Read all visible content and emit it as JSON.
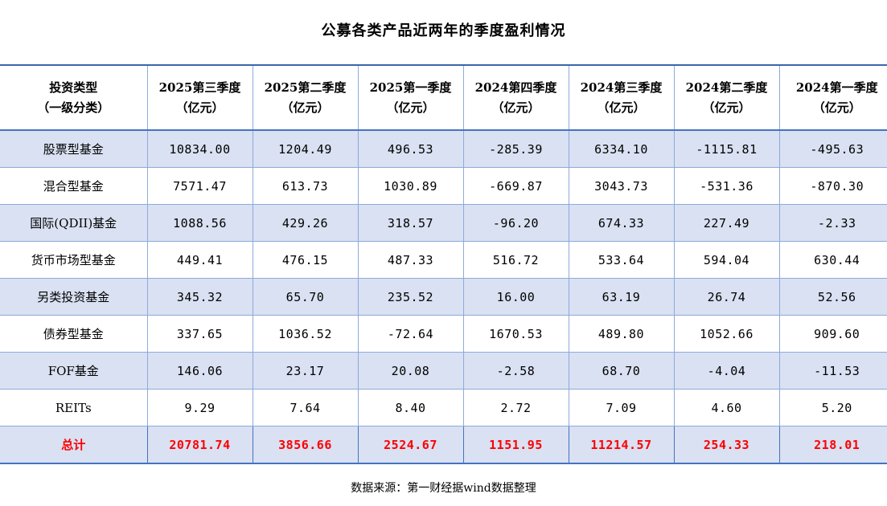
{
  "title": "公募各类产品近两年的季度盈利情况",
  "source": "数据来源：第一财经据wind数据整理",
  "colors": {
    "band_row_bg": "#D9E1F2",
    "grid_line": "#8EAADB",
    "heavy_line": "#4472C4",
    "top_line": "#3A66AC",
    "total_text": "#FF0000",
    "body_text": "#000000"
  },
  "table": {
    "header": {
      "category_line1": "投资类型",
      "category_line2": "（一级分类）",
      "quarters": [
        {
          "line1": "2025第三季度",
          "line2": "（亿元）"
        },
        {
          "line1": "2025第二季度",
          "line2": "（亿元）"
        },
        {
          "line1": "2025第一季度",
          "line2": "（亿元）"
        },
        {
          "line1": "2024第四季度",
          "line2": "（亿元）"
        },
        {
          "line1": "2024第三季度",
          "line2": "（亿元）"
        },
        {
          "line1": "2024第二季度",
          "line2": "（亿元）"
        },
        {
          "line1": "2024第一季度",
          "line2": "（亿元）"
        }
      ]
    },
    "rows": [
      {
        "name": "股票型基金",
        "values": [
          "10834.00",
          "1204.49",
          "496.53",
          "-285.39",
          "6334.10",
          "-1115.81",
          "-495.63"
        ]
      },
      {
        "name": "混合型基金",
        "values": [
          "7571.47",
          "613.73",
          "1030.89",
          "-669.87",
          "3043.73",
          "-531.36",
          "-870.30"
        ]
      },
      {
        "name": "国际(QDII)基金",
        "values": [
          "1088.56",
          "429.26",
          "318.57",
          "-96.20",
          "674.33",
          "227.49",
          "-2.33"
        ]
      },
      {
        "name": "货币市场型基金",
        "values": [
          "449.41",
          "476.15",
          "487.33",
          "516.72",
          "533.64",
          "594.04",
          "630.44"
        ]
      },
      {
        "name": "另类投资基金",
        "values": [
          "345.32",
          "65.70",
          "235.52",
          "16.00",
          "63.19",
          "26.74",
          "52.56"
        ]
      },
      {
        "name": "债券型基金",
        "values": [
          "337.65",
          "1036.52",
          "-72.64",
          "1670.53",
          "489.80",
          "1052.66",
          "909.60"
        ]
      },
      {
        "name": "FOF基金",
        "values": [
          "146.06",
          "23.17",
          "20.08",
          "-2.58",
          "68.70",
          "-4.04",
          "-11.53"
        ]
      },
      {
        "name": "REITs",
        "values": [
          "9.29",
          "7.64",
          "8.40",
          "2.72",
          "7.09",
          "4.60",
          "5.20"
        ]
      }
    ],
    "total": {
      "name": "总计",
      "values": [
        "20781.74",
        "3856.66",
        "2524.67",
        "1151.95",
        "11214.57",
        "254.33",
        "218.01"
      ]
    }
  },
  "chart_data": {
    "type": "table",
    "title": "公募各类产品近两年的季度盈利情况",
    "columns": [
      "投资类型（一级分类）",
      "2025第三季度（亿元）",
      "2025第二季度（亿元）",
      "2025第一季度（亿元）",
      "2024第四季度（亿元）",
      "2024第三季度（亿元）",
      "2024第二季度（亿元）",
      "2024第一季度（亿元）"
    ],
    "rows": [
      [
        "股票型基金",
        10834.0,
        1204.49,
        496.53,
        -285.39,
        6334.1,
        -1115.81,
        -495.63
      ],
      [
        "混合型基金",
        7571.47,
        613.73,
        1030.89,
        -669.87,
        3043.73,
        -531.36,
        -870.3
      ],
      [
        "国际(QDII)基金",
        1088.56,
        429.26,
        318.57,
        -96.2,
        674.33,
        227.49,
        -2.33
      ],
      [
        "货币市场型基金",
        449.41,
        476.15,
        487.33,
        516.72,
        533.64,
        594.04,
        630.44
      ],
      [
        "另类投资基金",
        345.32,
        65.7,
        235.52,
        16.0,
        63.19,
        26.74,
        52.56
      ],
      [
        "债券型基金",
        337.65,
        1036.52,
        -72.64,
        1670.53,
        489.8,
        1052.66,
        909.6
      ],
      [
        "FOF基金",
        146.06,
        23.17,
        20.08,
        -2.58,
        68.7,
        -4.04,
        -11.53
      ],
      [
        "REITs",
        9.29,
        7.64,
        8.4,
        2.72,
        7.09,
        4.6,
        5.2
      ],
      [
        "总计",
        20781.74,
        3856.66,
        2524.67,
        1151.95,
        11214.57,
        254.33,
        218.01
      ]
    ],
    "source": "数据来源：第一财经据wind数据整理"
  }
}
